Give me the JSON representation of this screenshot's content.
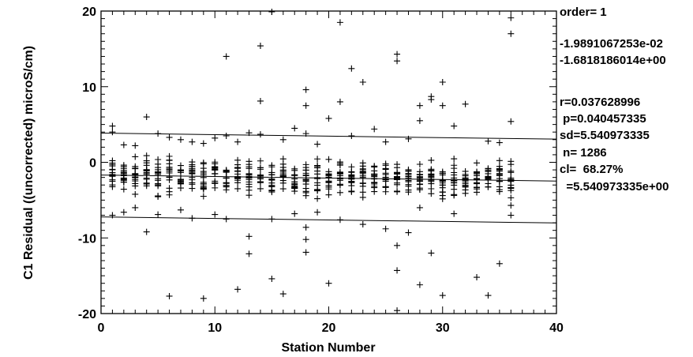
{
  "chart_data": {
    "type": "scatter",
    "xlabel": "Station Number",
    "ylabel": "C1 Residual ((uncorrected) microS/cm)",
    "xlim": [
      0,
      40
    ],
    "ylim": [
      -20,
      20
    ],
    "x_ticks": [
      "0",
      "10",
      "20",
      "30",
      "40"
    ],
    "y_ticks": [
      "-20",
      "-10",
      "0",
      "10",
      "20"
    ],
    "grid": false,
    "marker": "plus",
    "fit_line": {
      "y_at_x0": -1.6818186014,
      "slope": -0.019891067253
    },
    "band_lines": [
      {
        "y_at_x0": 3.8591547336,
        "slope": -0.019891067253
      },
      {
        "y_at_x0": -7.2227919364,
        "slope": -0.019891067253
      }
    ],
    "stats": [
      "order= 1",
      "-1.9891067253e-02",
      "-1.6818186014e+00",
      "r=0.037628996",
      " p=0.040457335",
      "sd=5.540973335",
      " n= 1286",
      "cl=  68.27%",
      "  =5.540973335e+00"
    ],
    "outliers": [
      [
        1,
        4.8
      ],
      [
        1,
        4.0
      ],
      [
        1,
        -7.0
      ],
      [
        2,
        2.3
      ],
      [
        2,
        -6.6
      ],
      [
        3,
        2.2
      ],
      [
        3,
        -6.0
      ],
      [
        4,
        6.0
      ],
      [
        4,
        -9.2
      ],
      [
        5,
        3.8
      ],
      [
        5,
        -6.9
      ],
      [
        6,
        -17.7
      ],
      [
        6,
        3.3
      ],
      [
        7,
        3.0
      ],
      [
        7,
        -6.3
      ],
      [
        8,
        2.7
      ],
      [
        8,
        -7.4
      ],
      [
        9,
        -18.0
      ],
      [
        9,
        2.5
      ],
      [
        10,
        3.2
      ],
      [
        10,
        -6.9
      ],
      [
        11,
        14.0
      ],
      [
        11,
        3.5
      ],
      [
        11,
        -7.5
      ],
      [
        12,
        -16.8
      ],
      [
        12,
        2.7
      ],
      [
        13,
        -9.8
      ],
      [
        13,
        -12.1
      ],
      [
        13,
        3.9
      ],
      [
        14,
        15.4
      ],
      [
        14,
        8.1
      ],
      [
        14,
        3.7
      ],
      [
        15,
        19.9
      ],
      [
        15,
        -15.4
      ],
      [
        15,
        -7.5
      ],
      [
        16,
        -17.4
      ],
      [
        16,
        3.0
      ],
      [
        17,
        4.5
      ],
      [
        17,
        -6.8
      ],
      [
        18,
        9.6
      ],
      [
        18,
        7.5
      ],
      [
        18,
        3.8
      ],
      [
        18,
        -8.6
      ],
      [
        18,
        -10.2
      ],
      [
        18,
        -11.9
      ],
      [
        19,
        2.4
      ],
      [
        19,
        -6.6
      ],
      [
        20,
        5.8
      ],
      [
        20,
        -16.0
      ],
      [
        21,
        18.5
      ],
      [
        21,
        8.0
      ],
      [
        21,
        -7.6
      ],
      [
        22,
        12.4
      ],
      [
        22,
        3.5
      ],
      [
        23,
        10.6
      ],
      [
        23,
        -8.2
      ],
      [
        24,
        4.4
      ],
      [
        25,
        2.7
      ],
      [
        25,
        -8.8
      ],
      [
        26,
        14.3
      ],
      [
        26,
        13.4
      ],
      [
        26,
        -11.0
      ],
      [
        26,
        -14.3
      ],
      [
        26,
        -19.6
      ],
      [
        27,
        3.1
      ],
      [
        27,
        -9.3
      ],
      [
        28,
        7.5
      ],
      [
        28,
        5.5
      ],
      [
        28,
        -6.0
      ],
      [
        28,
        -16.2
      ],
      [
        29,
        8.7
      ],
      [
        29,
        8.3
      ],
      [
        29,
        -12.0
      ],
      [
        30,
        10.6
      ],
      [
        30,
        7.5
      ],
      [
        30,
        -17.6
      ],
      [
        31,
        4.8
      ],
      [
        31,
        -6.8
      ],
      [
        32,
        7.7
      ],
      [
        33,
        -15.2
      ],
      [
        34,
        2.8
      ],
      [
        34,
        -17.6
      ],
      [
        35,
        -13.4
      ],
      [
        35,
        2.6
      ],
      [
        36,
        19.1
      ],
      [
        36,
        17.0
      ],
      [
        36,
        5.4
      ],
      [
        36,
        -7.0
      ],
      [
        36,
        -5.7
      ],
      [
        36,
        -4.7
      ]
    ]
  }
}
